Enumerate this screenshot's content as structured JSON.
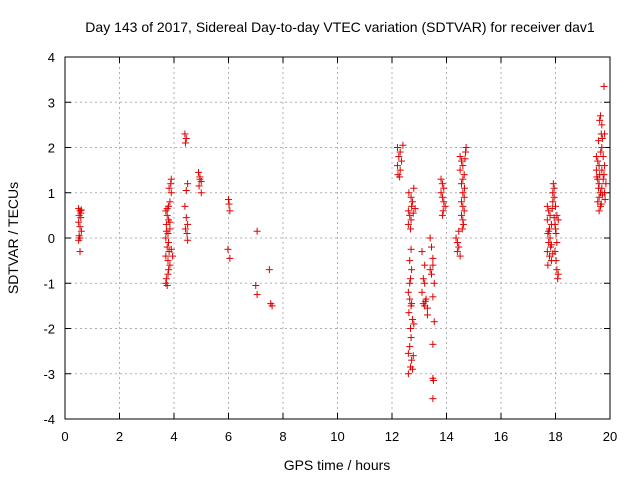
{
  "chart_data": {
    "type": "scatter",
    "title": "Day 143 of 2017, Sidereal Day-to-day VTEC variation (SDTVAR) for receiver dav1",
    "xlabel": "GPS time / hours",
    "ylabel": "SDTVAR / TECUs",
    "xlim": [
      0,
      20
    ],
    "ylim": [
      -4,
      4
    ],
    "xticks": [
      "0",
      "2",
      "4",
      "6",
      "8",
      "10",
      "12",
      "14",
      "16",
      "18",
      "20"
    ],
    "yticks": [
      "-4",
      "-3",
      "-2",
      "-1",
      "0",
      "1",
      "2",
      "3",
      "4"
    ],
    "grid": true,
    "marker": "+",
    "marker_color": "#e00000",
    "series": [
      {
        "name": "SDTVAR",
        "points": [
          [
            0.5,
            0.65
          ],
          [
            0.55,
            0.6
          ],
          [
            0.52,
            0.5
          ],
          [
            0.58,
            0.45
          ],
          [
            0.5,
            0.35
          ],
          [
            0.55,
            0.25
          ],
          [
            0.6,
            0.15
          ],
          [
            0.52,
            0.05
          ],
          [
            0.55,
            0.0
          ],
          [
            0.5,
            -0.05
          ],
          [
            0.58,
            0.55
          ],
          [
            0.6,
            0.62
          ],
          [
            0.55,
            -0.3
          ],
          [
            3.7,
            0.6
          ],
          [
            3.75,
            0.5
          ],
          [
            3.8,
            0.4
          ],
          [
            3.72,
            0.3
          ],
          [
            3.85,
            0.2
          ],
          [
            3.78,
            0.1
          ],
          [
            3.7,
            0.0
          ],
          [
            3.8,
            -0.1
          ],
          [
            3.75,
            -0.2
          ],
          [
            3.82,
            -0.3
          ],
          [
            3.7,
            -0.4
          ],
          [
            3.78,
            -0.5
          ],
          [
            3.85,
            -0.6
          ],
          [
            3.8,
            -0.7
          ],
          [
            3.72,
            -0.9
          ],
          [
            3.7,
            -1.0
          ],
          [
            3.75,
            -1.05
          ],
          [
            3.8,
            0.7
          ],
          [
            3.85,
            0.8
          ],
          [
            3.9,
            1.0
          ],
          [
            3.82,
            1.1
          ],
          [
            3.88,
            1.2
          ],
          [
            3.9,
            1.3
          ],
          [
            3.75,
            0.65
          ],
          [
            3.78,
            -0.8
          ],
          [
            3.85,
            0.35
          ],
          [
            3.9,
            -0.25
          ],
          [
            3.95,
            -0.4
          ],
          [
            3.72,
            0.15
          ],
          [
            4.4,
            2.3
          ],
          [
            4.45,
            2.2
          ],
          [
            4.42,
            2.1
          ],
          [
            4.5,
            1.2
          ],
          [
            4.45,
            1.05
          ],
          [
            4.4,
            0.7
          ],
          [
            4.45,
            0.45
          ],
          [
            4.5,
            0.3
          ],
          [
            4.42,
            0.2
          ],
          [
            4.48,
            0.1
          ],
          [
            4.5,
            -0.05
          ],
          [
            4.9,
            1.45
          ],
          [
            4.95,
            1.35
          ],
          [
            5.0,
            1.25
          ],
          [
            4.92,
            1.15
          ],
          [
            5.0,
            1.0
          ],
          [
            4.95,
            1.3
          ],
          [
            6.0,
            0.85
          ],
          [
            6.02,
            0.75
          ],
          [
            6.05,
            0.6
          ],
          [
            5.98,
            -0.25
          ],
          [
            6.05,
            -0.45
          ],
          [
            7.05,
            0.15
          ],
          [
            7.0,
            -1.05
          ],
          [
            7.05,
            -1.25
          ],
          [
            7.5,
            -0.7
          ],
          [
            7.55,
            -1.45
          ],
          [
            7.6,
            -1.5
          ],
          [
            12.2,
            2.0
          ],
          [
            12.3,
            1.9
          ],
          [
            12.25,
            1.8
          ],
          [
            12.35,
            1.7
          ],
          [
            12.2,
            1.6
          ],
          [
            12.3,
            1.5
          ],
          [
            12.22,
            1.4
          ],
          [
            12.28,
            1.35
          ],
          [
            12.4,
            2.05
          ],
          [
            12.6,
            0.6
          ],
          [
            12.65,
            0.5
          ],
          [
            12.7,
            0.4
          ],
          [
            12.6,
            0.3
          ],
          [
            12.68,
            0.2
          ],
          [
            12.75,
            0.8
          ],
          [
            12.7,
            0.9
          ],
          [
            12.62,
            1.0
          ],
          [
            12.8,
            1.1
          ],
          [
            12.72,
            0.7
          ],
          [
            12.7,
            -0.25
          ],
          [
            12.65,
            -0.5
          ],
          [
            12.72,
            -0.7
          ],
          [
            12.68,
            -0.9
          ],
          [
            12.6,
            -1.2
          ],
          [
            12.65,
            -1.35
          ],
          [
            12.7,
            -1.5
          ],
          [
            12.62,
            -1.65
          ],
          [
            12.75,
            -1.8
          ],
          [
            12.68,
            -2.0
          ],
          [
            12.7,
            -2.2
          ],
          [
            12.65,
            -2.4
          ],
          [
            12.6,
            -2.55
          ],
          [
            12.72,
            -2.7
          ],
          [
            12.68,
            -2.85
          ],
          [
            12.6,
            -3.0
          ],
          [
            12.75,
            -2.9
          ],
          [
            12.78,
            -2.6
          ],
          [
            12.8,
            -1.9
          ],
          [
            12.72,
            -1.45
          ],
          [
            12.65,
            -1.0
          ],
          [
            12.78,
            0.55
          ],
          [
            12.85,
            0.65
          ],
          [
            13.1,
            -0.3
          ],
          [
            13.2,
            -0.6
          ],
          [
            13.15,
            -0.9
          ],
          [
            13.2,
            -1.0
          ],
          [
            13.1,
            -1.2
          ],
          [
            13.25,
            -1.35
          ],
          [
            13.15,
            -1.45
          ],
          [
            13.2,
            -1.5
          ],
          [
            13.3,
            -1.55
          ],
          [
            13.22,
            -1.4
          ],
          [
            13.3,
            -1.7
          ],
          [
            13.4,
            0.0
          ],
          [
            13.45,
            -0.2
          ],
          [
            13.5,
            -0.45
          ],
          [
            13.4,
            -0.7
          ],
          [
            13.45,
            -0.8
          ],
          [
            13.5,
            -0.6
          ],
          [
            13.55,
            -1.0
          ],
          [
            13.5,
            -1.3
          ],
          [
            13.55,
            -1.85
          ],
          [
            13.5,
            -2.35
          ],
          [
            13.5,
            -3.1
          ],
          [
            13.52,
            -3.15
          ],
          [
            13.5,
            -3.55
          ],
          [
            13.8,
            1.3
          ],
          [
            13.85,
            1.2
          ],
          [
            13.9,
            1.1
          ],
          [
            13.8,
            1.0
          ],
          [
            13.85,
            0.9
          ],
          [
            13.9,
            0.8
          ],
          [
            13.95,
            0.7
          ],
          [
            13.88,
            0.6
          ],
          [
            13.85,
            0.5
          ],
          [
            14.35,
            0.0
          ],
          [
            14.4,
            -0.1
          ],
          [
            14.45,
            -0.2
          ],
          [
            14.4,
            -0.3
          ],
          [
            14.5,
            -0.4
          ],
          [
            14.45,
            0.15
          ],
          [
            14.5,
            1.8
          ],
          [
            14.55,
            1.7
          ],
          [
            14.6,
            1.6
          ],
          [
            14.5,
            1.5
          ],
          [
            14.65,
            1.4
          ],
          [
            14.6,
            1.3
          ],
          [
            14.55,
            1.2
          ],
          [
            14.6,
            1.0
          ],
          [
            14.65,
            0.9
          ],
          [
            14.55,
            0.8
          ],
          [
            14.6,
            0.7
          ],
          [
            14.65,
            0.6
          ],
          [
            14.55,
            0.5
          ],
          [
            14.6,
            0.4
          ],
          [
            14.62,
            0.3
          ],
          [
            14.58,
            0.2
          ],
          [
            14.7,
            1.9
          ],
          [
            14.72,
            2.0
          ],
          [
            14.68,
            1.75
          ],
          [
            14.66,
            1.1
          ],
          [
            17.7,
            0.7
          ],
          [
            17.75,
            0.6
          ],
          [
            17.8,
            0.5
          ],
          [
            17.7,
            0.4
          ],
          [
            17.85,
            0.3
          ],
          [
            17.78,
            0.2
          ],
          [
            17.72,
            0.1
          ],
          [
            17.8,
            0.0
          ],
          [
            17.75,
            -0.1
          ],
          [
            17.82,
            -0.2
          ],
          [
            17.7,
            -0.3
          ],
          [
            17.78,
            -0.4
          ],
          [
            17.85,
            -0.5
          ],
          [
            17.72,
            -0.6
          ],
          [
            17.9,
            0.8
          ],
          [
            17.95,
            0.9
          ],
          [
            17.9,
            1.0
          ],
          [
            17.95,
            1.1
          ],
          [
            17.92,
            1.2
          ],
          [
            18.0,
            0.7
          ],
          [
            18.05,
            0.5
          ],
          [
            17.98,
            0.3
          ],
          [
            18.02,
            0.1
          ],
          [
            18.05,
            -0.1
          ],
          [
            17.98,
            -0.3
          ],
          [
            18.02,
            -0.5
          ],
          [
            18.05,
            -0.7
          ],
          [
            18.1,
            -0.8
          ],
          [
            18.08,
            -0.9
          ],
          [
            17.88,
            0.65
          ],
          [
            17.95,
            0.45
          ],
          [
            17.9,
            -0.35
          ],
          [
            18.0,
            0.2
          ],
          [
            17.85,
            -0.15
          ],
          [
            18.1,
            0.4
          ],
          [
            17.75,
            0.15
          ],
          [
            19.5,
            1.8
          ],
          [
            19.55,
            1.7
          ],
          [
            19.6,
            1.6
          ],
          [
            19.5,
            1.5
          ],
          [
            19.62,
            1.4
          ],
          [
            19.55,
            1.3
          ],
          [
            19.6,
            1.2
          ],
          [
            19.58,
            1.1
          ],
          [
            19.65,
            1.0
          ],
          [
            19.6,
            0.9
          ],
          [
            19.55,
            0.8
          ],
          [
            19.65,
            0.7
          ],
          [
            19.6,
            0.6
          ],
          [
            19.7,
            2.0
          ],
          [
            19.72,
            2.2
          ],
          [
            19.68,
            2.3
          ],
          [
            19.62,
            2.6
          ],
          [
            19.65,
            2.7
          ],
          [
            19.7,
            1.5
          ],
          [
            19.75,
            1.3
          ],
          [
            19.7,
            1.1
          ],
          [
            19.72,
            0.95
          ],
          [
            19.75,
            1.8
          ],
          [
            19.8,
            1.6
          ],
          [
            19.78,
            1.4
          ],
          [
            19.85,
            1.2
          ],
          [
            19.8,
            1.0
          ],
          [
            19.82,
            0.85
          ],
          [
            19.78,
            3.35
          ],
          [
            19.7,
            2.5
          ],
          [
            19.66,
            1.9
          ],
          [
            19.58,
            2.15
          ],
          [
            19.52,
            1.35
          ],
          [
            19.68,
            0.75
          ],
          [
            19.8,
            2.3
          ]
        ]
      }
    ]
  }
}
